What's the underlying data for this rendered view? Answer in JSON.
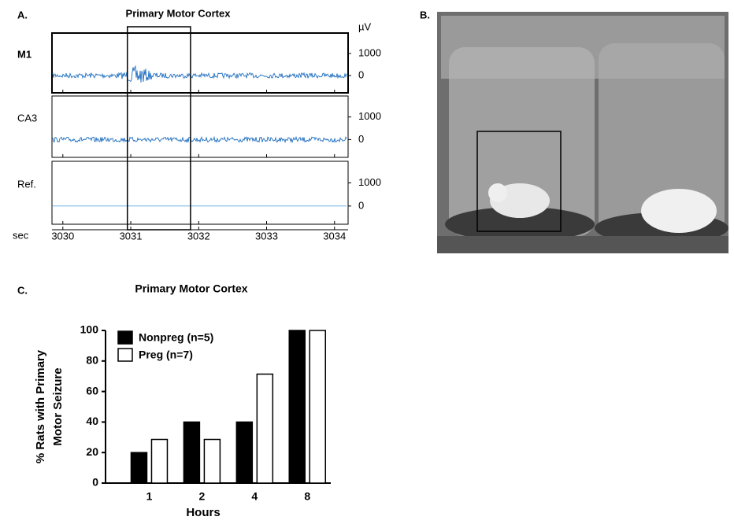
{
  "panels": {
    "b": {
      "label": "B."
    }
  },
  "chart_data": [
    {
      "type": "trace",
      "panel_label": "A.",
      "title": "Primary Motor Cortex",
      "unit": "µV",
      "x_label": "sec",
      "xlim": [
        3029.84,
        3034.2
      ],
      "xticks": [
        3030,
        3031,
        3032,
        3033,
        3034
      ],
      "ylim": [
        -786,
        1929
      ],
      "yticks": [
        0,
        1000
      ],
      "highlight": [
        3030.95,
        3031.88
      ],
      "series": [
        {
          "name": "M1",
          "color": "#1f6fc0"
        },
        {
          "name": "CA3",
          "color": "#1f6fc0"
        },
        {
          "name": "Ref.",
          "color": "#5aa7e0"
        }
      ]
    },
    {
      "type": "bar",
      "panel_label": "C.",
      "title": "Primary Motor Cortex",
      "y_label": [
        "% Rats with Primary",
        "Motor Seizure"
      ],
      "x_label": "Hours",
      "categories": [
        "1",
        "2",
        "4",
        "8"
      ],
      "ylim": [
        0,
        100
      ],
      "yticks": [
        0,
        20,
        40,
        60,
        80,
        100
      ],
      "legend": "upper left",
      "series": [
        {
          "name": "Nonpreg (n=5)",
          "color": "#000000",
          "values": [
            20,
            40,
            40,
            100
          ]
        },
        {
          "name": "Preg (n=7)",
          "color": "#ffffff",
          "values": [
            28.6,
            28.6,
            71.4,
            100
          ]
        }
      ]
    }
  ]
}
